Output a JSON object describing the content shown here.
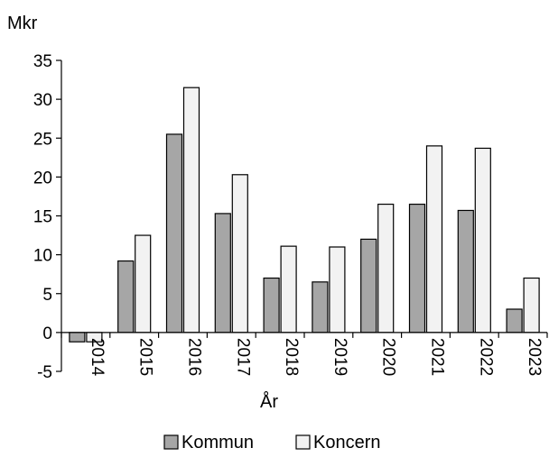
{
  "chart_data": {
    "type": "bar",
    "title": "",
    "ylabel": "Mkr",
    "xlabel": "År",
    "ylim": [
      -5,
      35
    ],
    "yticks": [
      -5,
      0,
      5,
      10,
      15,
      20,
      25,
      30,
      35
    ],
    "categories": [
      "2014",
      "2015",
      "2016",
      "2017",
      "2018",
      "2019",
      "2020",
      "2021",
      "2022",
      "2023"
    ],
    "series": [
      {
        "name": "Kommun",
        "color": "#a6a6a6",
        "values": [
          -1.2,
          9.2,
          25.5,
          15.3,
          7.0,
          6.5,
          12.0,
          16.5,
          15.7,
          3.0
        ]
      },
      {
        "name": "Koncern",
        "color": "#f2f2f2",
        "values": [
          -1.2,
          12.5,
          31.5,
          20.3,
          11.1,
          11.0,
          16.5,
          24.0,
          23.7,
          7.0
        ]
      }
    ],
    "grid": false,
    "legend_position": "bottom"
  }
}
